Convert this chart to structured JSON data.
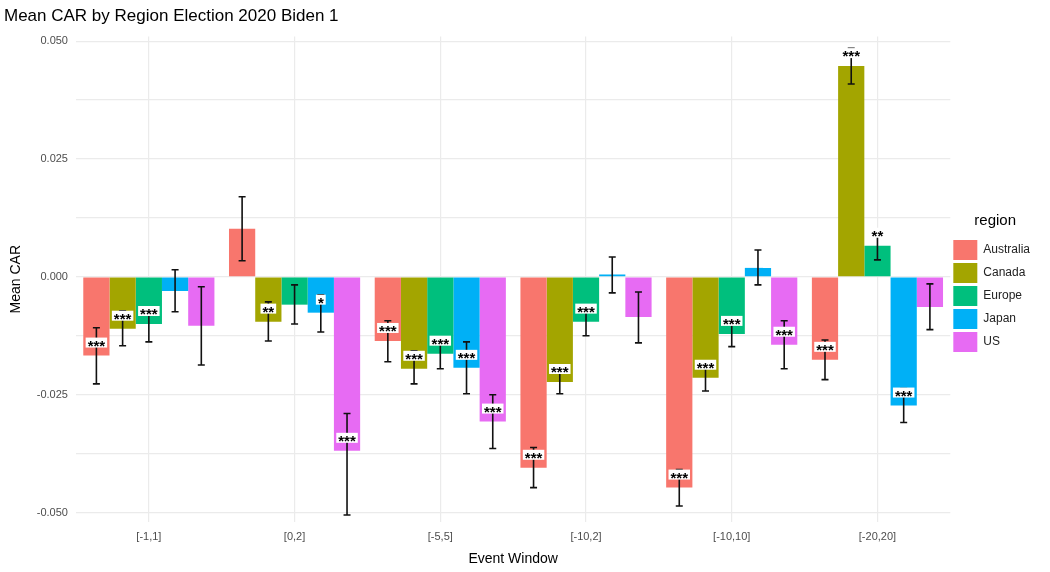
{
  "chart_data": {
    "type": "bar",
    "title": "Mean CAR by Region Election 2020 Biden 1",
    "xlabel": "Event Window",
    "ylabel": "Mean CAR",
    "legend_title": "region",
    "categories": [
      "[-1,1]",
      "[0,2]",
      "[-5,5]",
      "[-10,2]",
      "[-10,10]",
      "[-20,20]"
    ],
    "series": [
      {
        "name": "Australia",
        "color": "#f8766d",
        "values": [
          -0.0167,
          0.0102,
          -0.0136,
          -0.0405,
          -0.0447,
          -0.0176
        ],
        "errors": [
          [
            -0.0227,
            -0.0108
          ],
          [
            0.0034,
            0.017
          ],
          [
            -0.018,
            -0.0093
          ],
          [
            -0.0447,
            -0.0362
          ],
          [
            -0.0486,
            -0.0409
          ],
          [
            -0.0218,
            -0.0134
          ]
        ],
        "value_labels": [
          "***",
          null,
          "***",
          "***",
          "***",
          "***"
        ]
      },
      {
        "name": "Canada",
        "color": "#a3a500",
        "values": [
          -0.011,
          -0.0095,
          -0.0195,
          -0.0223,
          -0.0214,
          0.0447
        ],
        "errors": [
          [
            -0.0146,
            -0.0072
          ],
          [
            -0.0136,
            -0.0053
          ],
          [
            -0.0227,
            -0.0157
          ],
          [
            -0.0248,
            -0.0193
          ],
          [
            -0.0242,
            -0.0184
          ],
          [
            0.0409,
            0.0485
          ]
        ],
        "value_labels": [
          "***",
          "**",
          "***",
          "***",
          "***",
          "***"
        ]
      },
      {
        "name": "Europe",
        "color": "#00bf7d",
        "values": [
          -0.01,
          -0.0059,
          -0.0163,
          -0.0095,
          -0.0121,
          0.0066
        ],
        "errors": [
          [
            -0.0138,
            -0.0064
          ],
          [
            -0.01,
            -0.0017
          ],
          [
            -0.0195,
            -0.0131
          ],
          [
            -0.0125,
            -0.0068
          ],
          [
            -0.0148,
            -0.0089
          ],
          [
            0.0036,
            0.01
          ]
        ],
        "value_labels": [
          "***",
          null,
          "***",
          "***",
          "***",
          "**"
        ]
      },
      {
        "name": "Japan",
        "color": "#00b0f6",
        "values": [
          -0.003,
          -0.0076,
          -0.0193,
          0.0005,
          0.0019,
          -0.0273
        ],
        "errors": [
          [
            -0.0074,
            0.0015
          ],
          [
            -0.0117,
            -0.0038
          ],
          [
            -0.0248,
            -0.0138
          ],
          [
            -0.0034,
            0.0042
          ],
          [
            -0.0017,
            0.0057
          ],
          [
            -0.0309,
            -0.0237
          ]
        ],
        "value_labels": [
          null,
          "*",
          "***",
          null,
          null,
          "***"
        ]
      },
      {
        "name": "US",
        "color": "#e76bf3",
        "values": [
          -0.0104,
          -0.0369,
          -0.0307,
          -0.0085,
          -0.0144,
          -0.0064
        ],
        "errors": [
          [
            -0.0187,
            -0.0021
          ],
          [
            -0.0505,
            -0.029
          ],
          [
            -0.0364,
            -0.025
          ],
          [
            -0.014,
            -0.0032
          ],
          [
            -0.0195,
            -0.0093
          ],
          [
            -0.0112,
            -0.0015
          ]
        ],
        "value_labels": [
          null,
          "***",
          "***",
          null,
          "***",
          null
        ]
      }
    ],
    "ylim": [
      -0.052,
      0.051
    ],
    "yticks": [
      {
        "value": -0.05,
        "label": "-0.050"
      },
      {
        "value": -0.0375,
        "label": null
      },
      -0.025,
      {
        "value": -0.0125,
        "label": null
      },
      {
        "value": 0,
        "label": "0.000"
      },
      {
        "value": 0.0125,
        "label": null
      },
      0.025,
      {
        "value": 0.0375,
        "label": null
      },
      {
        "value": 0.05,
        "label": "0.050"
      }
    ],
    "grid": true,
    "legend": "right"
  }
}
